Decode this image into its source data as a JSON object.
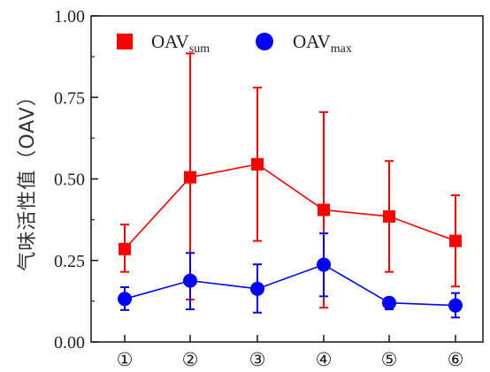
{
  "chart_data": {
    "type": "line",
    "categories": [
      "①",
      "②",
      "③",
      "④",
      "⑤",
      "⑥"
    ],
    "ylabel": "气味活性值（OAV）",
    "ylim": [
      0,
      1.0
    ],
    "yticks": [
      "0.00",
      "0.25",
      "0.50",
      "0.75",
      "1.00"
    ],
    "ytick_values": [
      0,
      0.25,
      0.5,
      0.75,
      1.0
    ],
    "grid": false,
    "legend_position": "top",
    "series": [
      {
        "name_main": "OAV",
        "name_sub": "sum",
        "color": "#ff0000",
        "marker": "square",
        "values": [
          0.285,
          0.505,
          0.545,
          0.405,
          0.385,
          0.31
        ],
        "err_low": [
          0.215,
          0.13,
          0.31,
          0.105,
          0.215,
          0.17
        ],
        "err_high": [
          0.36,
          0.885,
          0.78,
          0.705,
          0.555,
          0.45
        ]
      },
      {
        "name_main": "OAV",
        "name_sub": "max",
        "color": "#0000ff",
        "marker": "circle",
        "values": [
          0.132,
          0.188,
          0.163,
          0.237,
          0.12,
          0.112
        ],
        "err_low": [
          0.098,
          0.1,
          0.09,
          0.14,
          0.1,
          0.075
        ],
        "err_high": [
          0.168,
          0.273,
          0.238,
          0.333,
          0.135,
          0.15
        ]
      }
    ]
  }
}
